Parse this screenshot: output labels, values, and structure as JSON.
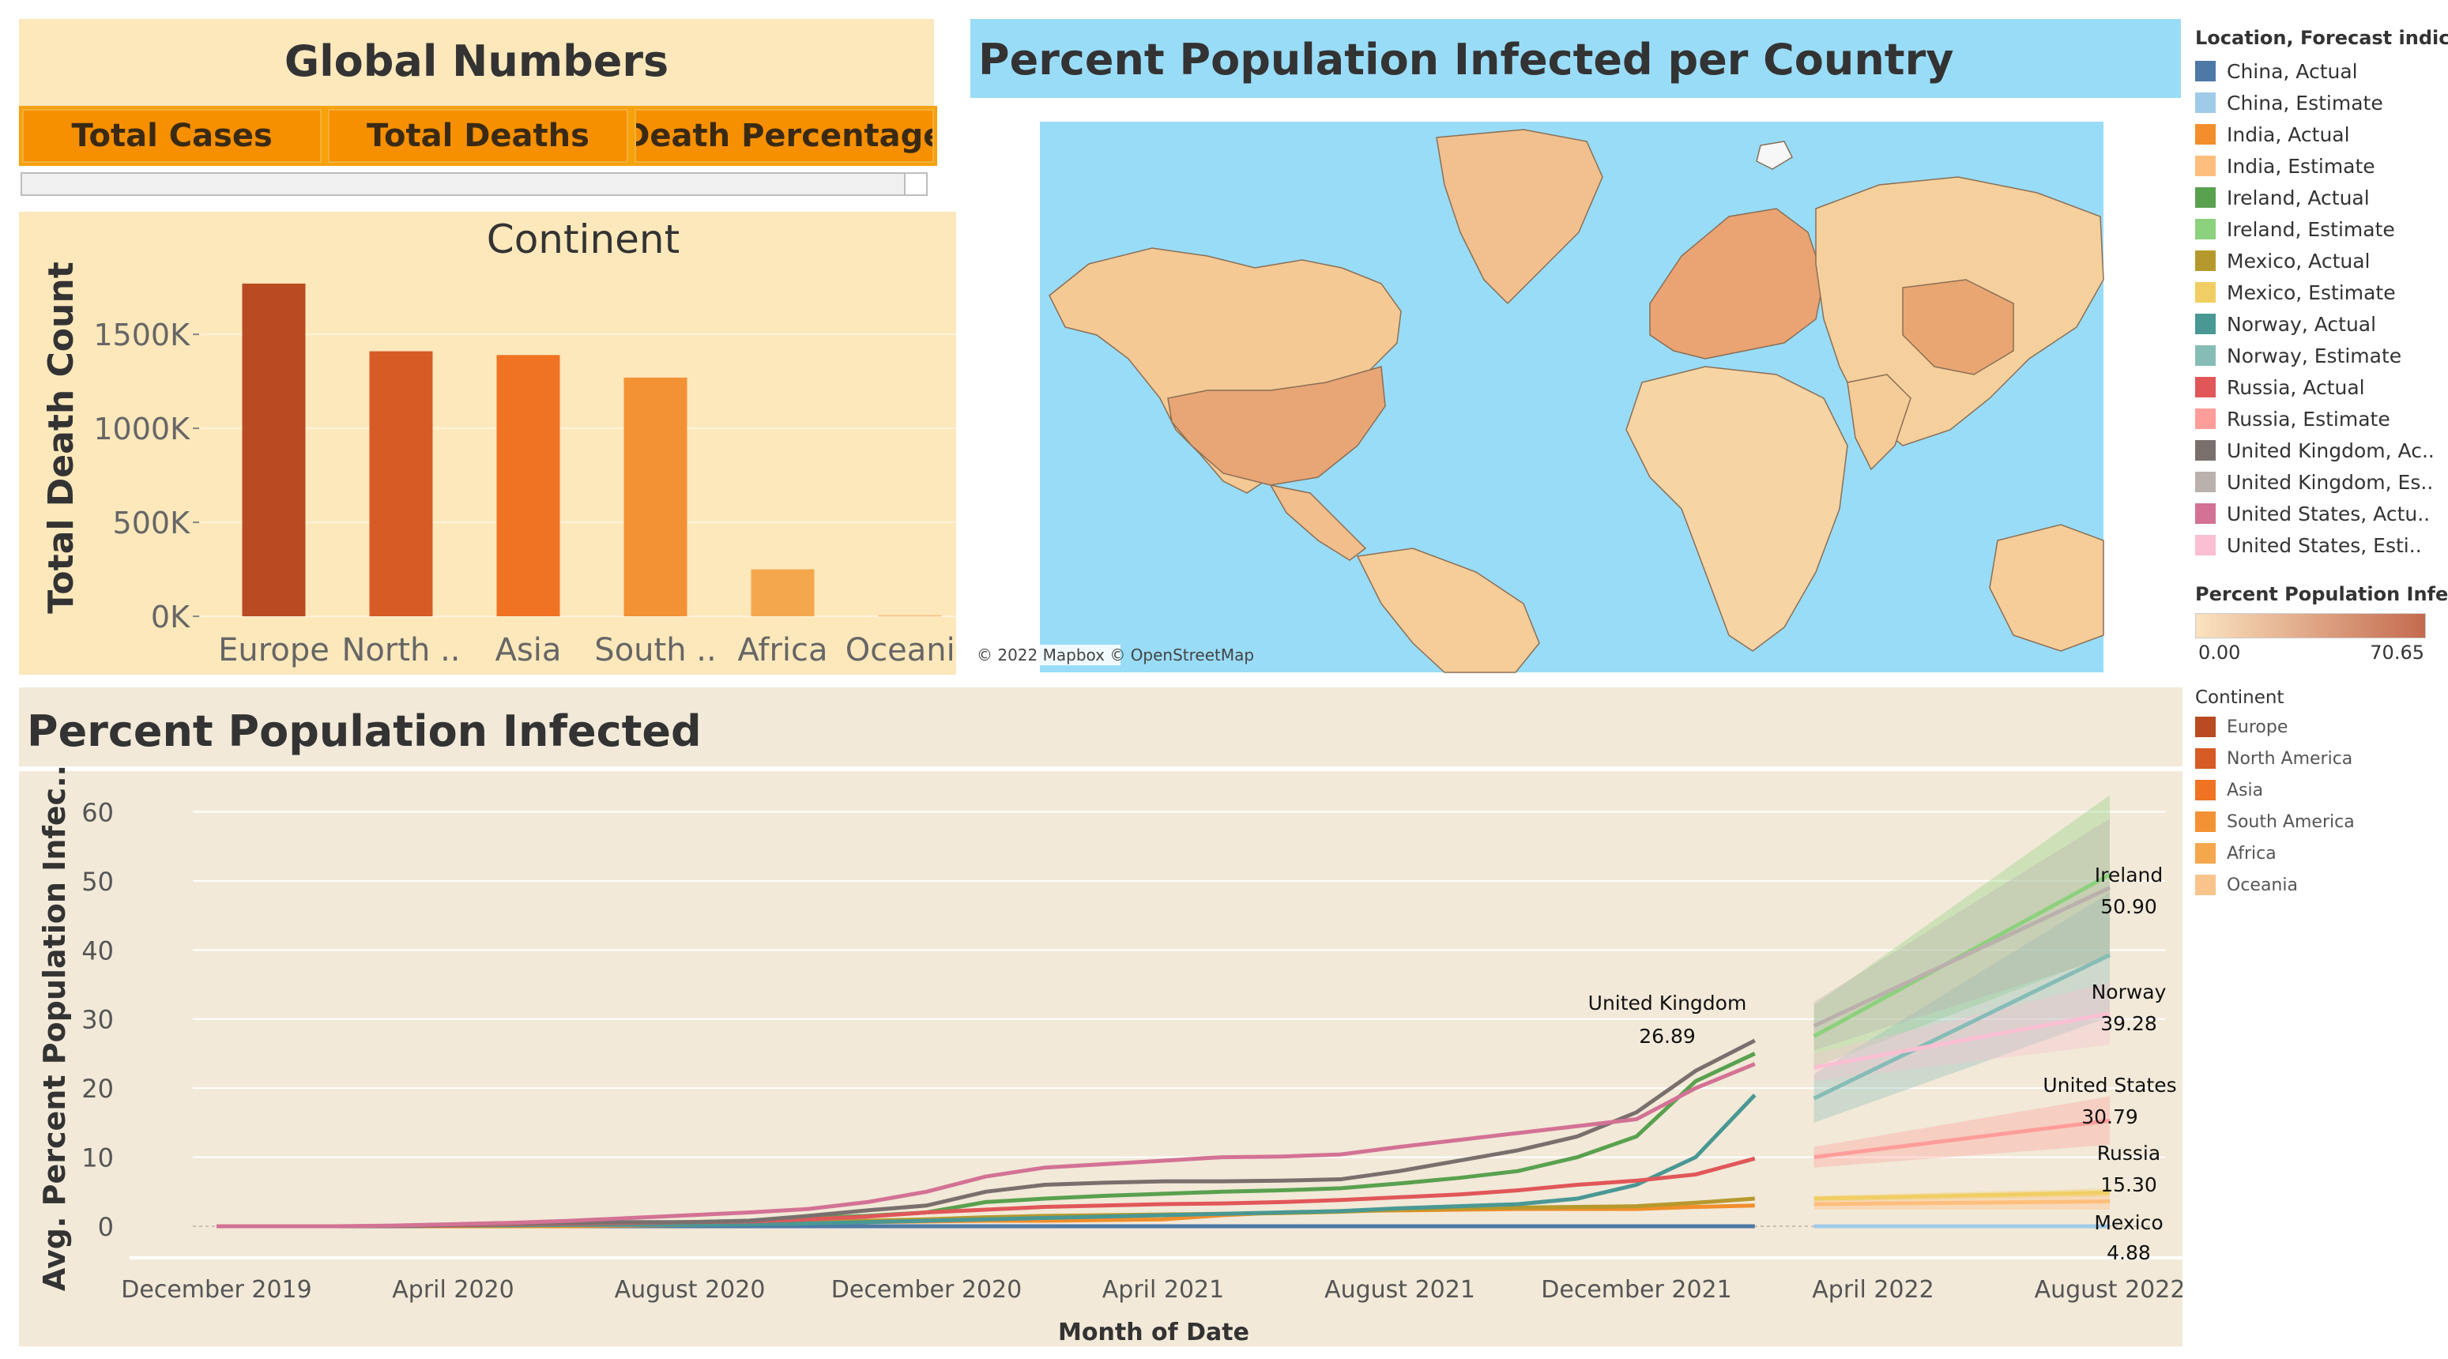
{
  "global_numbers": {
    "title": "Global Numbers",
    "columns": [
      "Total Cases",
      "Total Deaths",
      "Death Percentage"
    ]
  },
  "map": {
    "title": "Percent Population Infected per Country",
    "attribution": "© 2022 Mapbox © OpenStreetMap",
    "ocean_color": "#99dcf7",
    "land_color": "#f6cf9c"
  },
  "legend_forecast": {
    "title": "Location, Forecast indic..",
    "items": [
      {
        "label": "China, Actual",
        "color": "#4e79a7"
      },
      {
        "label": "China, Estimate",
        "color": "#a0cbe8"
      },
      {
        "label": "India, Actual",
        "color": "#f28e2b"
      },
      {
        "label": "India, Estimate",
        "color": "#ffbe7d"
      },
      {
        "label": "Ireland, Actual",
        "color": "#59a14f"
      },
      {
        "label": "Ireland, Estimate",
        "color": "#8cd17d"
      },
      {
        "label": "Mexico, Actual",
        "color": "#b6992d"
      },
      {
        "label": "Mexico, Estimate",
        "color": "#f1ce63"
      },
      {
        "label": "Norway, Actual",
        "color": "#499894"
      },
      {
        "label": "Norway, Estimate",
        "color": "#86bcb6"
      },
      {
        "label": "Russia, Actual",
        "color": "#e15759"
      },
      {
        "label": "Russia, Estimate",
        "color": "#ff9d9a"
      },
      {
        "label": "United Kingdom, Ac..",
        "color": "#79706e"
      },
      {
        "label": "United Kingdom, Es..",
        "color": "#bab0ac"
      },
      {
        "label": "United States, Actu..",
        "color": "#d37295"
      },
      {
        "label": "United States, Esti..",
        "color": "#fabfd2"
      }
    ]
  },
  "legend_gradient": {
    "title": "Percent Population Infe..",
    "min_label": "0.00",
    "max_label": "70.65",
    "color_low": "#fbe3c0",
    "color_high": "#c46a4e"
  },
  "legend_continent": {
    "title": "Continent",
    "items": [
      {
        "label": "Europe",
        "color": "#b84b22"
      },
      {
        "label": "North America",
        "color": "#d75b25"
      },
      {
        "label": "Asia",
        "color": "#ef7323"
      },
      {
        "label": "South America",
        "color": "#f39135"
      },
      {
        "label": "Africa",
        "color": "#f5a74d"
      },
      {
        "label": "Oceania",
        "color": "#f8c48c"
      }
    ]
  },
  "chart_data": [
    {
      "type": "bar",
      "title": "Continent",
      "ylabel": "Total Death Count",
      "xlabel": "",
      "categories": [
        "Europe",
        "North ..",
        "Asia",
        "South ..",
        "Africa",
        "Oceania"
      ],
      "values": [
        1770000,
        1410000,
        1390000,
        1270000,
        250000,
        7000
      ],
      "colors": [
        "#b84b22",
        "#d75b25",
        "#ef7323",
        "#f39135",
        "#f5a74d",
        "#f8c48c"
      ],
      "ylim": [
        0,
        1900000
      ],
      "yticks": [
        0,
        500000,
        1000000,
        1500000
      ],
      "ytick_labels": [
        "0K",
        "500K",
        "1000K",
        "1500K"
      ],
      "grid": true
    },
    {
      "type": "line",
      "title": "Percent Population Infected",
      "xlabel": "Month of Date",
      "ylabel": "Avg. Percent Population Infec..",
      "ylim": [
        0,
        62
      ],
      "yticks": [
        0,
        10,
        20,
        30,
        40,
        50,
        60
      ],
      "xlim": [
        "2019-12",
        "2022-08"
      ],
      "xtick_dates": [
        "2019-12",
        "2020-04",
        "2020-08",
        "2020-12",
        "2021-04",
        "2021-08",
        "2021-12",
        "2022-04",
        "2022-08"
      ],
      "xtick_labels": [
        "December 2019",
        "April 2020",
        "August 2020",
        "December 2020",
        "April 2021",
        "August 2021",
        "December 2021",
        "April 2022",
        "August 2022"
      ],
      "actual_dates": [
        "2019-12",
        "2020-01",
        "2020-02",
        "2020-03",
        "2020-04",
        "2020-05",
        "2020-06",
        "2020-07",
        "2020-08",
        "2020-09",
        "2020-10",
        "2020-11",
        "2020-12",
        "2021-01",
        "2021-02",
        "2021-03",
        "2021-04",
        "2021-05",
        "2021-06",
        "2021-07",
        "2021-08",
        "2021-09",
        "2021-10",
        "2021-11",
        "2021-12",
        "2022-01",
        "2022-02"
      ],
      "estimate_dates": [
        "2022-03",
        "2022-08"
      ],
      "series": [
        {
          "name": "China, Actual",
          "color": "#4e79a7",
          "values": [
            0,
            0,
            0,
            0,
            0,
            0,
            0,
            0,
            0,
            0,
            0,
            0,
            0,
            0,
            0,
            0,
            0,
            0,
            0,
            0,
            0,
            0,
            0,
            0,
            0,
            0,
            0
          ]
        },
        {
          "name": "China, Estimate",
          "color": "#a0cbe8",
          "values": [
            0,
            0
          ],
          "band": [
            0,
            0
          ]
        },
        {
          "name": "India, Actual",
          "color": "#f28e2b",
          "values": [
            0,
            0,
            0,
            0,
            0,
            0,
            0,
            0.1,
            0.2,
            0.4,
            0.5,
            0.6,
            0.7,
            0.8,
            0.8,
            0.9,
            1.0,
            1.6,
            2.0,
            2.2,
            2.3,
            2.4,
            2.5,
            2.5,
            2.5,
            2.8,
            3.0
          ]
        },
        {
          "name": "India, Estimate",
          "color": "#ffbe7d",
          "values": [
            3.2,
            3.6
          ],
          "band": [
            0.8,
            1.2
          ]
        },
        {
          "name": "Ireland, Actual",
          "color": "#59a14f",
          "values": [
            0,
            0,
            0,
            0,
            0.2,
            0.4,
            0.5,
            0.5,
            0.6,
            0.8,
            1.2,
            1.5,
            2.0,
            3.5,
            4.0,
            4.4,
            4.7,
            5.0,
            5.2,
            5.5,
            6.2,
            7.0,
            8.0,
            10.0,
            13.0,
            21.0,
            25.0
          ]
        },
        {
          "name": "Ireland, Estimate",
          "color": "#8cd17d",
          "values": [
            27.5,
            50.9
          ],
          "band": [
            4.5,
            11.5
          ]
        },
        {
          "name": "Mexico, Actual",
          "color": "#b6992d",
          "values": [
            0,
            0,
            0,
            0,
            0.05,
            0.1,
            0.2,
            0.3,
            0.4,
            0.5,
            0.6,
            0.8,
            1.0,
            1.3,
            1.5,
            1.6,
            1.7,
            1.8,
            1.9,
            2.1,
            2.4,
            2.6,
            2.7,
            2.8,
            2.9,
            3.4,
            4.0
          ]
        },
        {
          "name": "Mexico, Estimate",
          "color": "#f1ce63",
          "values": [
            4.0,
            4.88
          ],
          "band": [
            0.4,
            0.6
          ]
        },
        {
          "name": "Norway, Actual",
          "color": "#499894",
          "values": [
            0,
            0,
            0,
            0,
            0.1,
            0.15,
            0.2,
            0.2,
            0.2,
            0.3,
            0.4,
            0.6,
            0.8,
            1.0,
            1.2,
            1.4,
            1.6,
            1.8,
            2.0,
            2.2,
            2.6,
            2.9,
            3.2,
            4.0,
            6.0,
            10.0,
            19.0
          ]
        },
        {
          "name": "Norway, Estimate",
          "color": "#86bcb6",
          "values": [
            18.5,
            39.28
          ],
          "band": [
            3.5,
            9.0
          ]
        },
        {
          "name": "Russia, Actual",
          "color": "#e15759",
          "values": [
            0,
            0,
            0,
            0,
            0.1,
            0.3,
            0.4,
            0.5,
            0.6,
            0.7,
            1.0,
            1.4,
            2.0,
            2.4,
            2.8,
            3.0,
            3.2,
            3.3,
            3.5,
            3.8,
            4.2,
            4.6,
            5.2,
            6.0,
            6.6,
            7.5,
            9.8
          ]
        },
        {
          "name": "Russia, Estimate",
          "color": "#ff9d9a",
          "values": [
            10.0,
            15.3
          ],
          "band": [
            1.5,
            3.5
          ]
        },
        {
          "name": "United Kingdom, Actual",
          "color": "#79706e",
          "values": [
            0,
            0,
            0,
            0,
            0.2,
            0.4,
            0.5,
            0.6,
            0.6,
            0.8,
            1.5,
            2.3,
            3.0,
            5.0,
            6.0,
            6.3,
            6.5,
            6.5,
            6.6,
            6.8,
            8.0,
            9.5,
            11.0,
            13.0,
            16.5,
            22.5,
            26.89
          ]
        },
        {
          "name": "United Kingdom, Estimate",
          "color": "#bab0ac",
          "values": [
            29.0,
            49.0
          ],
          "band": [
            3.5,
            10.0
          ]
        },
        {
          "name": "United States, Actual",
          "color": "#d37295",
          "values": [
            0,
            0,
            0,
            0.1,
            0.3,
            0.5,
            0.8,
            1.2,
            1.6,
            2.0,
            2.5,
            3.5,
            5.0,
            7.2,
            8.5,
            9.0,
            9.5,
            10.0,
            10.1,
            10.4,
            11.5,
            12.5,
            13.5,
            14.5,
            15.5,
            20.0,
            23.5
          ]
        },
        {
          "name": "United States, Estimate",
          "color": "#fabfd2",
          "values": [
            23.0,
            30.79
          ],
          "band": [
            2.0,
            4.5
          ]
        }
      ],
      "annotations": [
        {
          "text": "United Kingdom",
          "value": "26.89"
        },
        {
          "text": "Ireland",
          "value": "50.90"
        },
        {
          "text": "Norway",
          "value": "39.28"
        },
        {
          "text": "United States",
          "value": "30.79"
        },
        {
          "text": "Russia",
          "value": "15.30"
        },
        {
          "text": "Mexico",
          "value": "4.88"
        }
      ]
    }
  ]
}
